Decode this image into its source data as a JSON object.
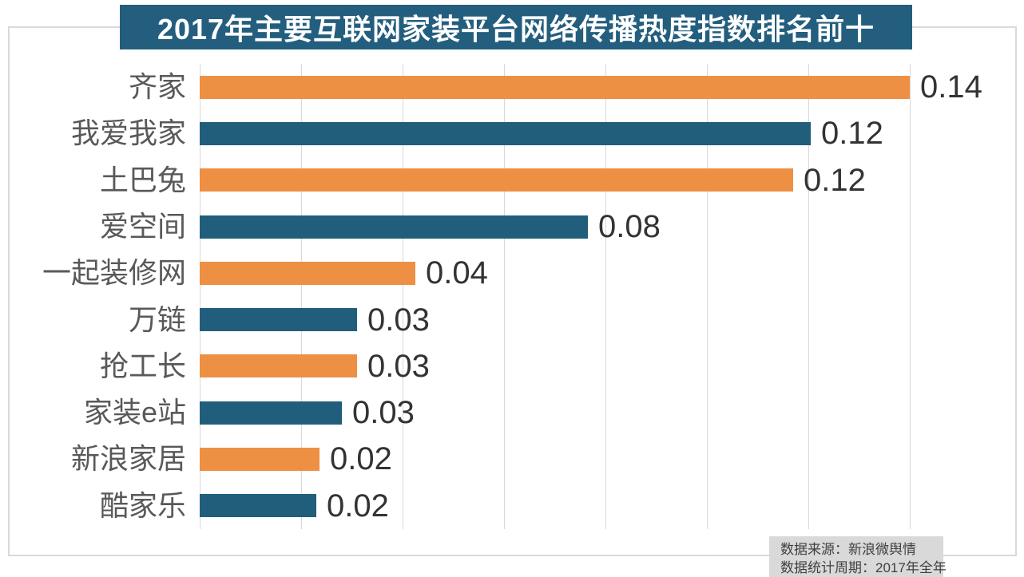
{
  "chart_data": {
    "type": "bar",
    "orientation": "horizontal",
    "title": "2017年主要互联网家装平台网络传播热度指数排名前十",
    "categories": [
      "齐家",
      "我爱我家",
      "土巴兔",
      "爱空间",
      "一起装修网",
      "万链",
      "抢工长",
      "家装e站",
      "新浪家居",
      "酷家乐"
    ],
    "values": [
      0.14,
      0.12,
      0.12,
      0.08,
      0.04,
      0.03,
      0.03,
      0.03,
      0.02,
      0.02
    ],
    "value_labels": [
      "0.14",
      "0.12",
      "0.12",
      "0.08",
      "0.04",
      "0.03",
      "0.03",
      "0.03",
      "0.02",
      "0.02"
    ],
    "values_precise": [
      0.14,
      0.1205,
      0.117,
      0.0765,
      0.0425,
      0.031,
      0.031,
      0.028,
      0.0236,
      0.023
    ],
    "xlim": [
      0,
      0.16
    ],
    "gridline_interval": 0.02,
    "grid": "vertical-lines-on",
    "legend": "none",
    "colors": {
      "bar_orange": "#ed9044",
      "bar_blue": "#215e7c",
      "title_bg": "#235e7e",
      "title_text": "#ffffff",
      "category_text": "#595959",
      "value_text": "#333333",
      "gridline": "#d9d9d9",
      "source_bg": "#d9d9d9",
      "source_text": "#404040"
    }
  },
  "source_note": {
    "line1": "数据来源：新浪微舆情",
    "line2": "数据统计周期：2017年全年"
  }
}
